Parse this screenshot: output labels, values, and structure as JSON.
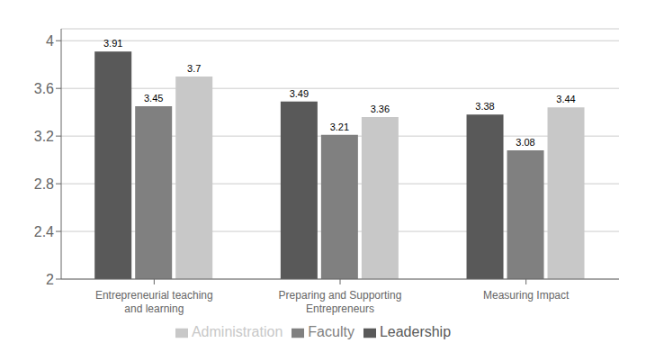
{
  "chart_data": {
    "type": "bar",
    "categories": [
      "Entrepreneurial teaching\nand learning",
      "Preparing and Supporting\nEntrepreneurs",
      "Measuring Impact"
    ],
    "series": [
      {
        "name": "Leadership",
        "color": "#595959",
        "values": [
          3.91,
          3.49,
          3.38
        ]
      },
      {
        "name": "Faculty",
        "color": "#808080",
        "values": [
          3.45,
          3.21,
          3.08
        ]
      },
      {
        "name": "Administration",
        "color": "#c8c8c8",
        "values": [
          3.7,
          3.36,
          3.44
        ]
      }
    ],
    "ylim": [
      2.0,
      4.1
    ],
    "yticks": [
      2,
      2.4,
      2.8,
      3.2,
      3.6,
      4
    ],
    "grid": true,
    "legend": "bottom",
    "data_labels": true
  }
}
